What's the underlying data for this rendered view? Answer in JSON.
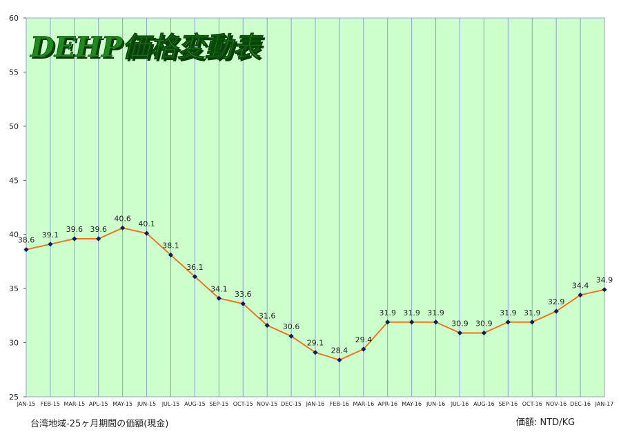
{
  "chart_data": {
    "type": "line",
    "title": "DEHP価格変動表",
    "categories": [
      "JAN-15",
      "FEB-15",
      "MAR-15",
      "APL-15",
      "MAY-15",
      "JUN-15",
      "JUL-15",
      "AUG-15",
      "SEP-15",
      "OCT-15",
      "NOV-15",
      "DEC-15",
      "JAN-16",
      "FEB-16",
      "MAR-16",
      "APR-16",
      "MAY-16",
      "JUN-16",
      "JUL-16",
      "AUG-16",
      "SEP-16",
      "OCT-16",
      "NOV-16",
      "DEC-16",
      "JAN-17"
    ],
    "series": [
      {
        "values": [
          38.6,
          39.1,
          39.6,
          39.6,
          40.6,
          40.1,
          38.1,
          36.1,
          34.1,
          33.6,
          31.6,
          30.6,
          29.1,
          28.4,
          29.4,
          31.9,
          31.9,
          31.9,
          30.9,
          30.9,
          31.9,
          31.9,
          32.9,
          34.4,
          34.9
        ]
      }
    ],
    "data_labels": [
      "38.6",
      "39.1",
      "39.6",
      "39.6",
      "40.6",
      "40.1",
      "38.1",
      "36.1",
      "34.1",
      "33.6",
      "31.6",
      "30.6",
      "29.1",
      "28.4",
      "29.4",
      "31.9",
      "31.9",
      "31.9",
      "30.9",
      "30.9",
      "31.9",
      "31.9",
      "32.9",
      "34.4",
      "34.9"
    ],
    "ylim": [
      25,
      60
    ],
    "yticks": [
      "25",
      "30",
      "35",
      "40",
      "45",
      "50",
      "55",
      "60"
    ],
    "grid": "vertical",
    "colors": {
      "plot_background": "#ccffcc",
      "gridline": "#8aa0d0",
      "line": "#e87722",
      "marker": "#0b1f5c",
      "title_fill": "#1e8a1e",
      "title_shadow": "#0a3a0a"
    }
  },
  "footer": {
    "left_note": "台湾地域-25ヶ月期間の価額(現金)",
    "right_note": "価額: NTD/KG"
  }
}
